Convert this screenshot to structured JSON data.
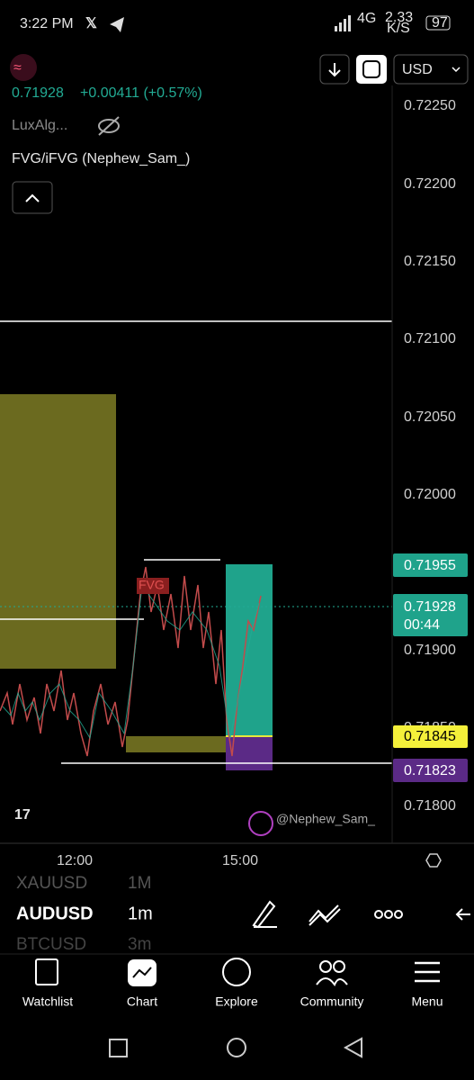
{
  "status": {
    "time": "3:22 PM",
    "network": "4G",
    "speed": "2.33",
    "speed_unit": "K/S",
    "battery": "97"
  },
  "header": {
    "price": "0.71928",
    "change": "+0.00411 (+0.57%)",
    "currency": "USD",
    "indicators": [
      "LuxAlg...",
      "FVG/iFVG (Nephew_Sam_)"
    ]
  },
  "price_axis": [
    "0.72250",
    "0.72200",
    "0.72150",
    "0.72100",
    "0.72050",
    "0.72000",
    "0.71900",
    "0.71850",
    "0.71800"
  ],
  "price_tags": {
    "upper": "0.71955",
    "last": "0.71928",
    "countdown": "00:44",
    "lower": "0.71845",
    "bottom": "0.71823"
  },
  "chart_labels": {
    "fvg": "FVG",
    "watermark": "@Nephew_Sam_"
  },
  "time_axis": [
    "12:00",
    "15:00"
  ],
  "symbols": [
    {
      "symbol": "XAUUSD",
      "interval": "1M"
    },
    {
      "symbol": "AUDUSD",
      "interval": "1m"
    },
    {
      "symbol": "BTCUSD",
      "interval": "3m"
    }
  ],
  "nav": [
    "Watchlist",
    "Chart",
    "Explore",
    "Community",
    "Menu"
  ]
}
